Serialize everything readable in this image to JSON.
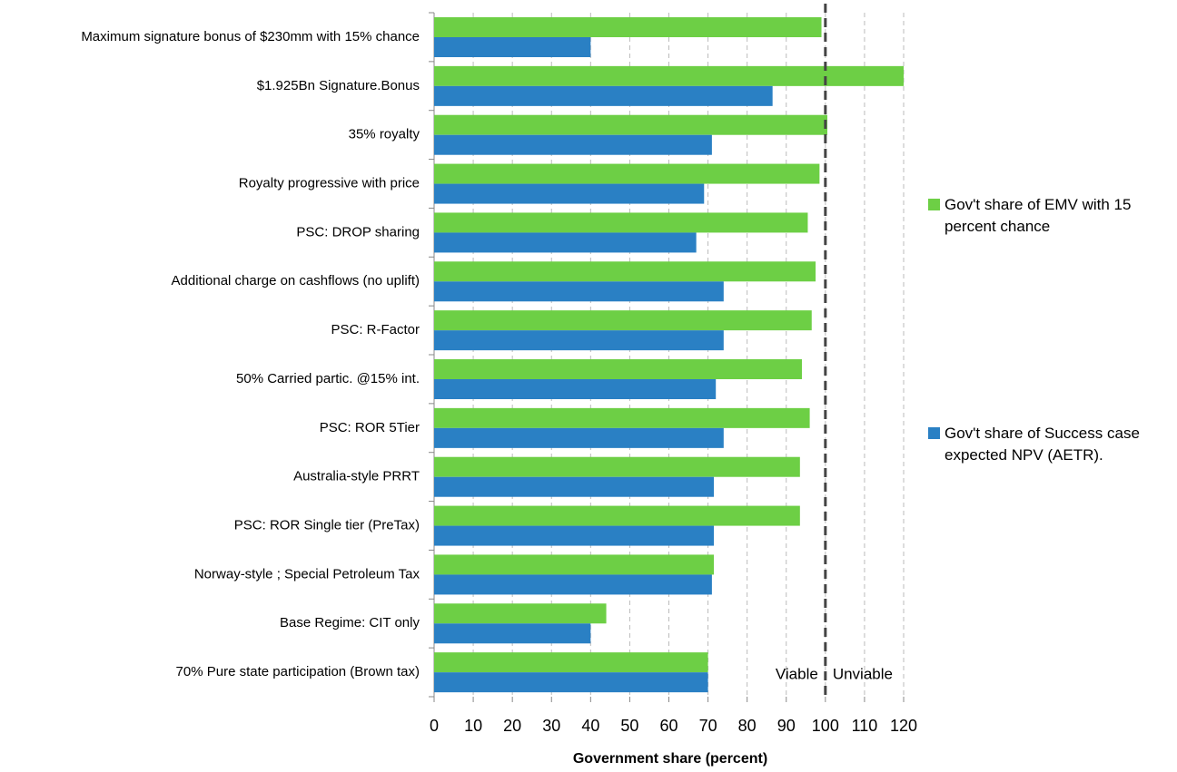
{
  "chart_data": {
    "type": "hbar",
    "categories": [
      "Maximum signature bonus of $230mm with 15% chance",
      "$1.925Bn Signature.Bonus",
      "35% royalty",
      "Royalty progressive with price",
      "PSC: DROP sharing",
      "Additional charge on cashflows (no uplift)",
      "PSC: R-Factor",
      "50% Carried partic. @15% int.",
      "PSC: ROR 5Tier",
      "Australia-style PRRT",
      "PSC: ROR Single tier  (PreTax)",
      "Norway-style ; Special Petroleum Tax",
      "Base Regime: CIT only",
      "70% Pure state participation (Brown tax)"
    ],
    "series": [
      {
        "name": "Gov't share of EMV with 15 percent chance",
        "color": "#6dcf45",
        "values": [
          99,
          120,
          100.5,
          98.5,
          95.5,
          97.5,
          96.5,
          94,
          96,
          93.5,
          93.5,
          71.5,
          44,
          70
        ]
      },
      {
        "name": "Gov't share of Success case expected NPV (AETR).",
        "color": "#2a80c4",
        "values": [
          40,
          86.5,
          71,
          69,
          67,
          74,
          74,
          72,
          74,
          71.5,
          71.5,
          71,
          40,
          70
        ]
      }
    ],
    "xlim": [
      0,
      120
    ],
    "xticks": [
      0,
      10,
      20,
      30,
      40,
      50,
      60,
      70,
      80,
      90,
      100,
      110,
      120
    ],
    "xlabel": "Government share (percent)",
    "grid": true,
    "threshold": 100,
    "annotations": [
      "Viable",
      "Unviable"
    ]
  }
}
